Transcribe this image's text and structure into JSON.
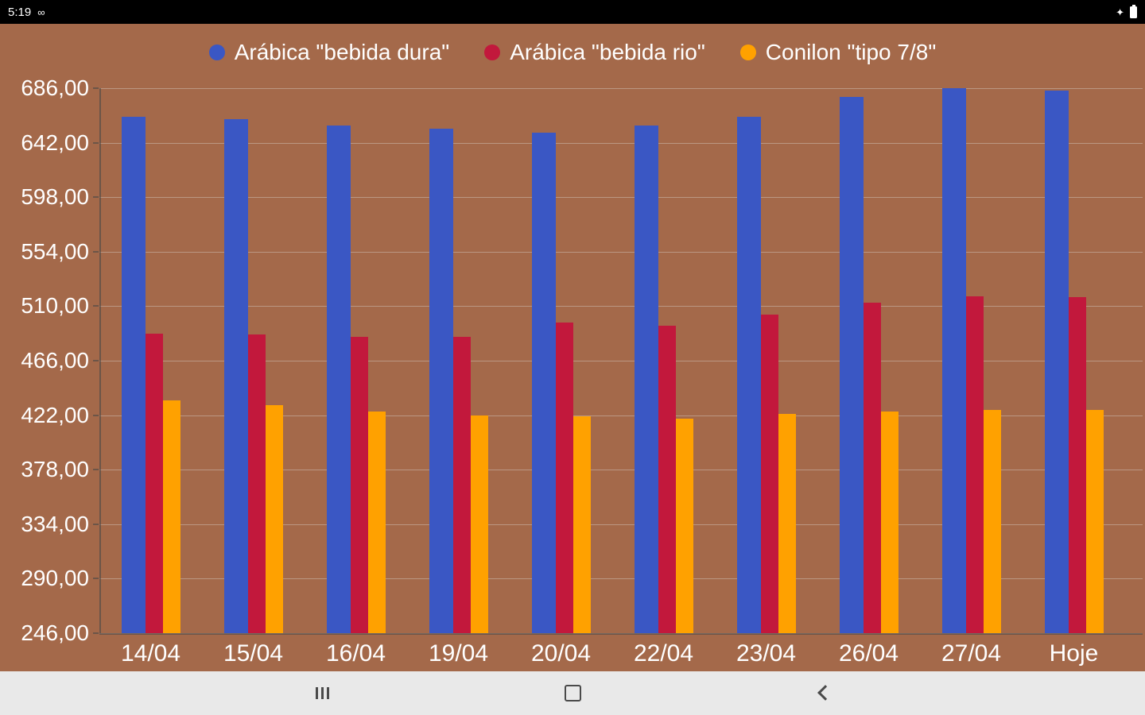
{
  "colors": {
    "background": "#A4694A",
    "status_bar": "#000000",
    "nav_bar": "#E9E9E9",
    "text": "#FFFFFF",
    "series_blue": "#3A57C4",
    "series_red": "#C2183C",
    "series_orange": "#FFA100"
  },
  "status_bar": {
    "time": "5:19",
    "infinity_icon": "∞",
    "misc_icon": "✦"
  },
  "chart_data": {
    "type": "bar",
    "title": "",
    "categories": [
      "14/04",
      "15/04",
      "16/04",
      "19/04",
      "20/04",
      "22/04",
      "23/04",
      "26/04",
      "27/04",
      "Hoje"
    ],
    "series": [
      {
        "name": "Arábica \"bebida dura\"",
        "color": "#3A57C4",
        "values": [
          663,
          661,
          656,
          653,
          650,
          656,
          663,
          679,
          686,
          684
        ]
      },
      {
        "name": "Arábica \"bebida rio\"",
        "color": "#C2183C",
        "values": [
          488,
          487,
          485,
          485,
          497,
          494,
          503,
          513,
          518,
          517
        ]
      },
      {
        "name": "Conilon \"tipo 7/8\"",
        "color": "#FFA100",
        "values": [
          434,
          430,
          425,
          422,
          421,
          419,
          423,
          425,
          426,
          426
        ]
      }
    ],
    "ylim": [
      246,
      686
    ],
    "ytick_values": [
      686,
      642,
      598,
      554,
      510,
      466,
      422,
      378,
      334,
      290,
      246
    ],
    "yticks": [
      "686,00",
      "642,00",
      "598,00",
      "554,00",
      "510,00",
      "466,00",
      "422,00",
      "378,00",
      "334,00",
      "290,00",
      "246,00"
    ],
    "xlabel": "",
    "ylabel": "",
    "grid": true,
    "legend_position": "top"
  },
  "nav_bar": {
    "buttons": [
      "recents",
      "home",
      "back"
    ]
  }
}
